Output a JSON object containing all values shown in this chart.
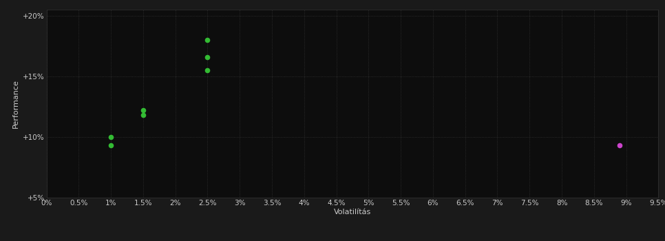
{
  "green_points": [
    [
      1.0,
      10.0
    ],
    [
      1.0,
      9.3
    ],
    [
      1.5,
      12.2
    ],
    [
      1.5,
      11.8
    ],
    [
      2.5,
      18.0
    ],
    [
      2.5,
      16.6
    ],
    [
      2.5,
      15.5
    ]
  ],
  "magenta_points": [
    [
      8.9,
      9.3
    ]
  ],
  "green_color": "#33bb33",
  "magenta_color": "#cc44cc",
  "fig_bg_color": "#1a1a1a",
  "plot_bg_color": "#0d0d0d",
  "grid_color": "#333333",
  "text_color": "#cccccc",
  "xlabel": "Volatilítás",
  "ylabel": "Performance",
  "xlim": [
    0.0,
    9.5
  ],
  "ylim": [
    5.0,
    20.5
  ],
  "xtick_values": [
    0.0,
    0.5,
    1.0,
    1.5,
    2.0,
    2.5,
    3.0,
    3.5,
    4.0,
    4.5,
    5.0,
    5.5,
    6.0,
    6.5,
    7.0,
    7.5,
    8.0,
    8.5,
    9.0,
    9.5
  ],
  "ytick_values": [
    5.0,
    10.0,
    15.0,
    20.0
  ],
  "ytick_labels": [
    "+5%",
    "+10%",
    "+15%",
    "+20%"
  ],
  "marker_size": 30,
  "font_size": 7.5
}
